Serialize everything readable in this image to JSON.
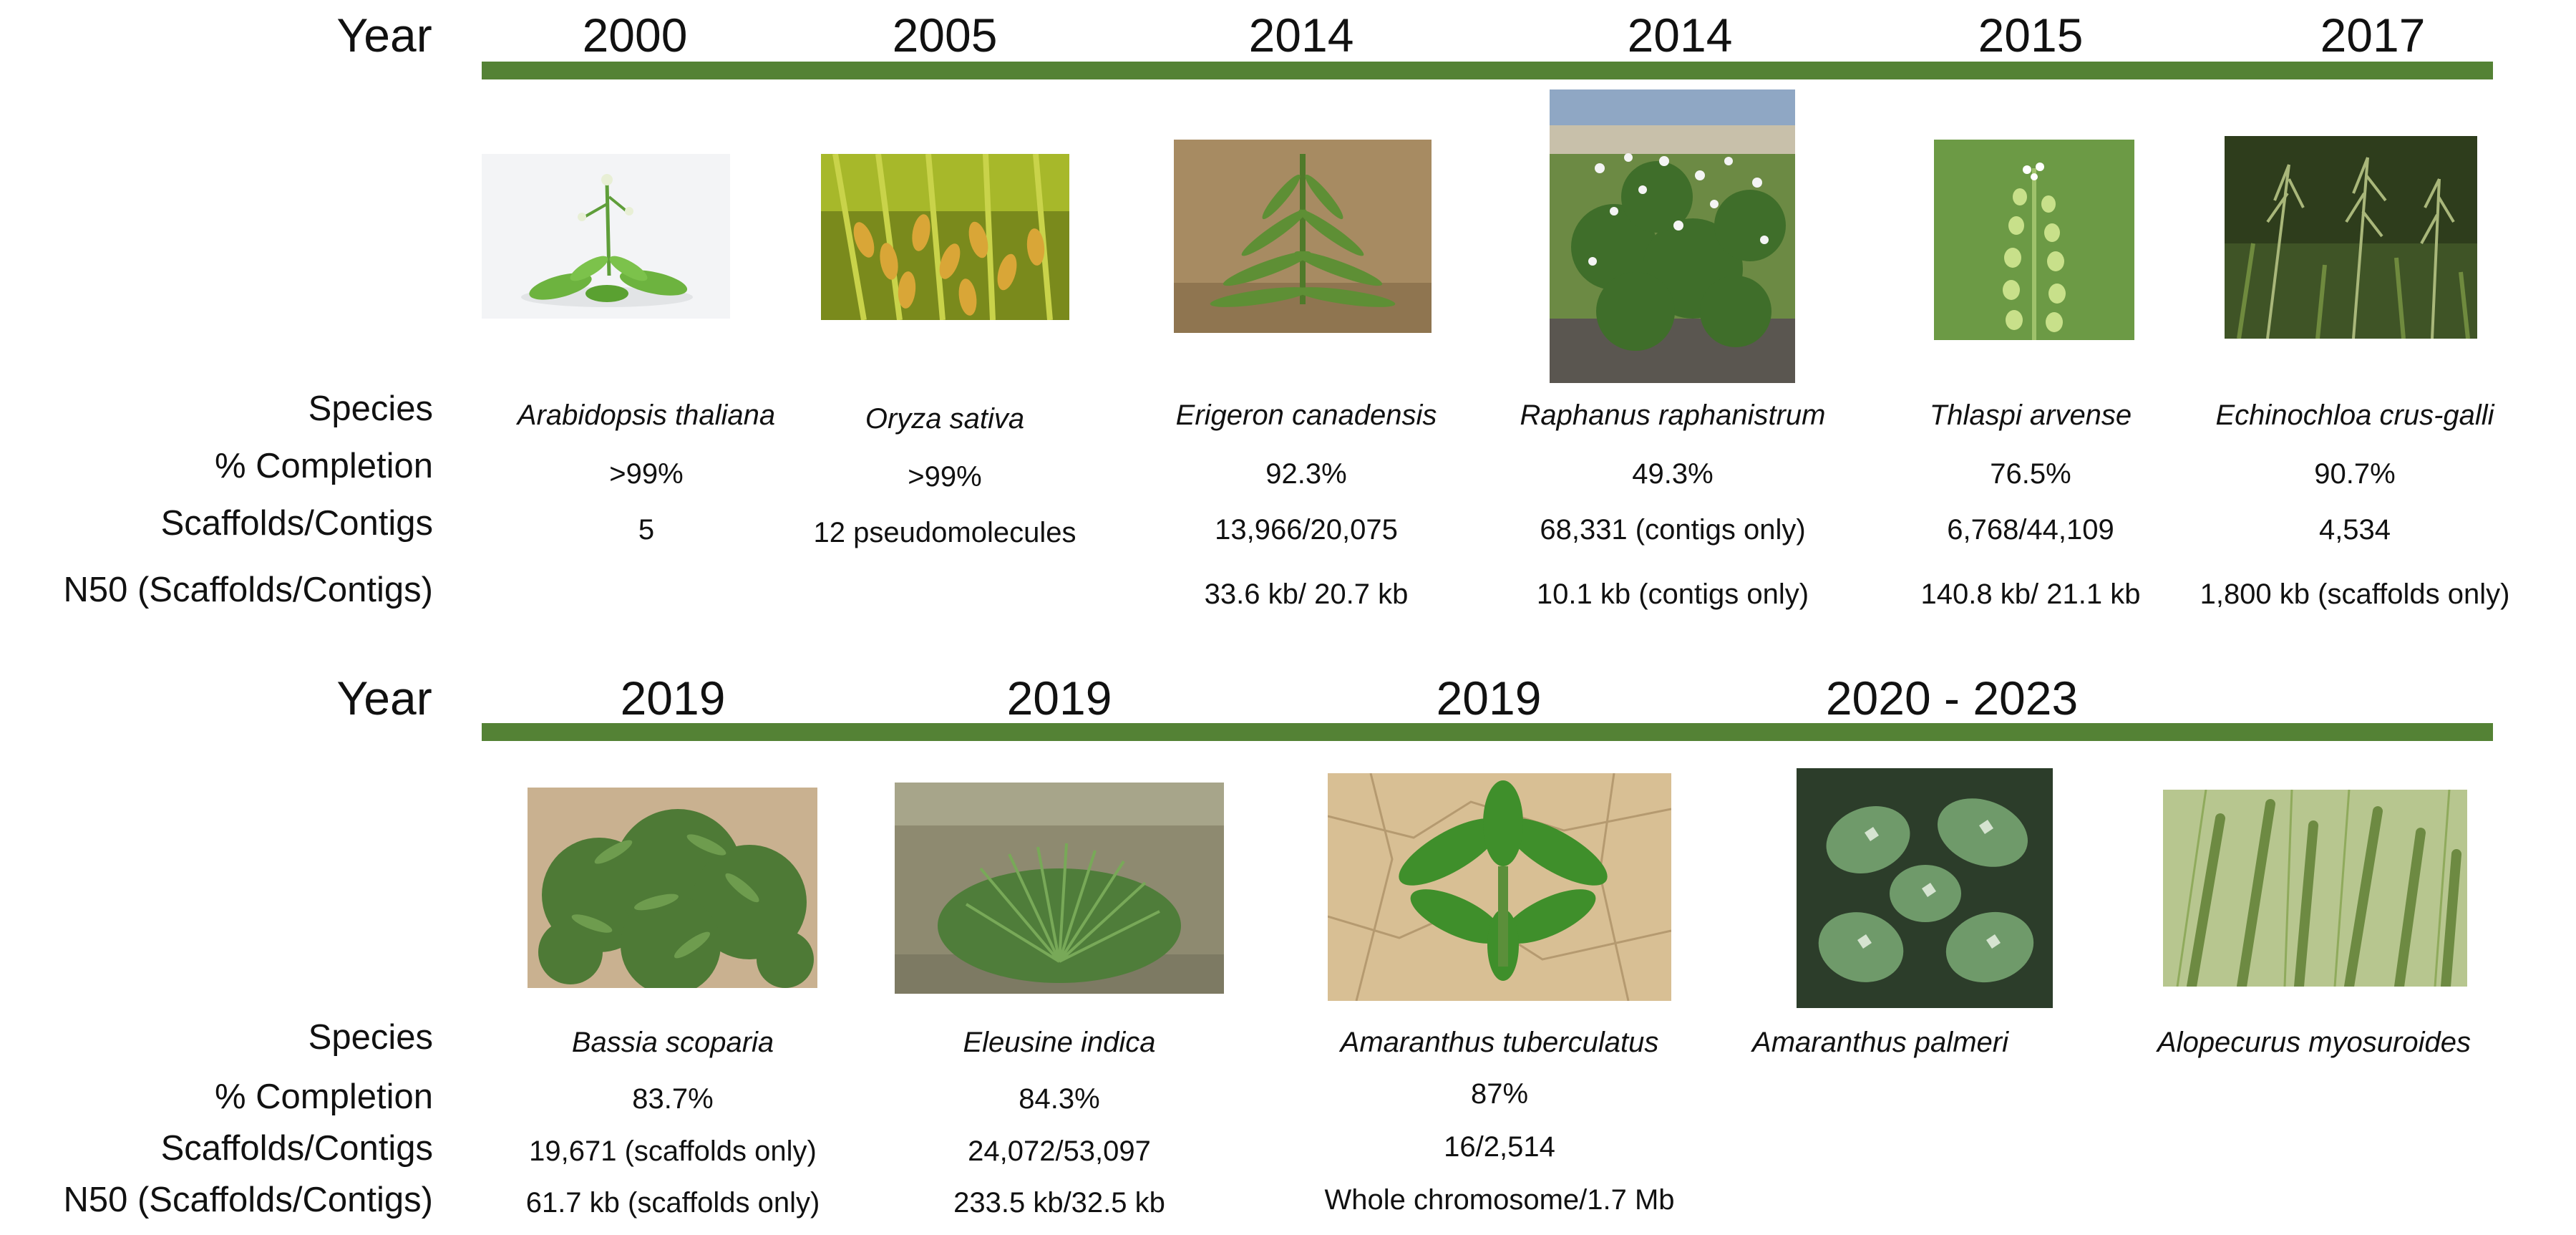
{
  "labels": {
    "year": "Year",
    "species": "Species",
    "completion": "% Completion",
    "scaffolds": "Scaffolds/Contigs",
    "n50": "N50 (Scaffolds/Contigs)"
  },
  "timeline_color": "#548235",
  "rows": [
    {
      "entries": [
        {
          "year": "2000",
          "species": "Arabidopsis thaliana",
          "completion": ">99%",
          "scaffolds": "5",
          "n50": "",
          "icon": "arabidopsis-photo"
        },
        {
          "year": "2005",
          "species": "Oryza sativa",
          "completion": ">99%",
          "scaffolds": "12 pseudomolecules",
          "n50": "",
          "icon": "rice-photo"
        },
        {
          "year": "2014",
          "species": "Erigeron canadensis",
          "completion": "92.3%",
          "scaffolds": "13,966/20,075",
          "n50": "33.6 kb/ 20.7 kb",
          "icon": "horseweed-photo"
        },
        {
          "year": "2014",
          "species": "Raphanus raphanistrum",
          "completion": "49.3%",
          "scaffolds": "68,331 (contigs only)",
          "n50": "10.1 kb (contigs only)",
          "icon": "wild-radish-photo"
        },
        {
          "year": "2015",
          "species": "Thlaspi arvense",
          "completion": "76.5%",
          "scaffolds": "6,768/44,109",
          "n50": "140.8 kb/ 21.1 kb",
          "icon": "pennycress-photo"
        },
        {
          "year": "2017",
          "species": "Echinochloa crus-galli",
          "completion": "90.7%",
          "scaffolds": "4,534",
          "n50": "1,800 kb (scaffolds only)",
          "icon": "barnyardgrass-photo"
        }
      ]
    },
    {
      "entries": [
        {
          "year": "2019",
          "species": "Bassia scoparia",
          "completion": "83.7%",
          "scaffolds": "19,671 (scaffolds only)",
          "n50": "61.7 kb (scaffolds only)",
          "icon": "kochia-photo"
        },
        {
          "year": "2019",
          "species": "Eleusine indica",
          "completion": "84.3%",
          "scaffolds": "24,072/53,097",
          "n50": "233.5 kb/32.5 kb",
          "icon": "goosegrass-photo"
        },
        {
          "year": "2019",
          "species": "Amaranthus tuberculatus",
          "completion": "87%",
          "scaffolds": "16/2,514",
          "n50": "Whole chromosome/1.7 Mb",
          "icon": "waterhemp-photo"
        },
        {
          "year": "2020 - 2023",
          "species": "Amaranthus palmeri",
          "completion": "",
          "scaffolds": "",
          "n50": "",
          "icon": "palmer-amaranth-photo"
        },
        {
          "year": "",
          "species": "Alopecurus myosuroides",
          "completion": "",
          "scaffolds": "",
          "n50": "",
          "icon": "blackgrass-photo"
        }
      ]
    }
  ]
}
